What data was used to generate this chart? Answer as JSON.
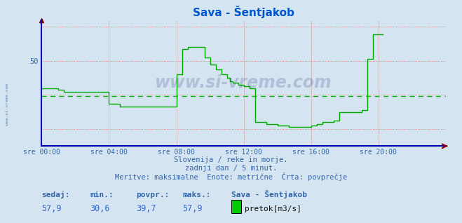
{
  "title": "Sava - Šentjakob",
  "bg_color": "#d4e4f0",
  "plot_bg_color": "#d4e4f0",
  "line_color": "#00aa00",
  "avg_line_color": "#00bb00",
  "avg_value": 39.7,
  "ymin": 25.0,
  "ymax": 62.0,
  "ytick_val": 50,
  "xlabel_color": "#3366aa",
  "axis_color": "#0000bb",
  "grid_color_h": "#dd6666",
  "grid_color_v": "#dd6666",
  "title_color": "#0055cc",
  "watermark": "www.si-vreme.com",
  "subtitle1": "Slovenija / reke in morje.",
  "subtitle2": "zadnji dan / 5 minut.",
  "subtitle3": "Meritve: maksimalne  Enote: metrične  Črta: povprečje",
  "legend_label": "pretok[m3/s]",
  "station": "Sava - Šentjakob",
  "sedaj_label": "sedaj:",
  "min_label": "min.:",
  "povpr_label": "povpr.:",
  "maks_label": "maks.:",
  "sedaj_val": "57,9",
  "min_val": "30,6",
  "povpr_val": "39,7",
  "maks_val": "57,9",
  "time_labels": [
    "sre 00:00",
    "sre 04:00",
    "sre 08:00",
    "sre 12:00",
    "sre 16:00",
    "sre 20:00"
  ],
  "time_positions": [
    0,
    48,
    96,
    144,
    192,
    240
  ],
  "total_points": 288,
  "flow_data": [
    42.0,
    42.0,
    42.0,
    42.0,
    42.0,
    42.0,
    42.0,
    42.0,
    42.0,
    42.0,
    42.0,
    42.0,
    41.5,
    41.5,
    41.5,
    41.5,
    41.0,
    41.0,
    41.0,
    41.0,
    41.0,
    41.0,
    41.0,
    41.0,
    41.0,
    41.0,
    41.0,
    41.0,
    41.0,
    41.0,
    41.0,
    41.0,
    41.0,
    41.0,
    41.0,
    41.0,
    41.0,
    41.0,
    41.0,
    41.0,
    41.0,
    41.0,
    41.0,
    41.0,
    41.0,
    41.0,
    41.0,
    41.0,
    37.5,
    37.5,
    37.5,
    37.5,
    37.5,
    37.5,
    37.5,
    37.5,
    36.5,
    36.5,
    36.5,
    36.5,
    36.5,
    36.5,
    36.5,
    36.5,
    36.5,
    36.5,
    36.5,
    36.5,
    36.5,
    36.5,
    36.5,
    36.5,
    36.5,
    36.5,
    36.5,
    36.5,
    36.5,
    36.5,
    36.5,
    36.5,
    36.5,
    36.5,
    36.5,
    36.5,
    36.5,
    36.5,
    36.5,
    36.5,
    36.5,
    36.5,
    36.5,
    36.5,
    36.5,
    36.5,
    36.5,
    36.5,
    46.0,
    46.0,
    46.0,
    46.0,
    53.5,
    53.5,
    53.5,
    53.5,
    54.0,
    54.0,
    54.0,
    54.0,
    54.0,
    54.0,
    54.0,
    54.0,
    54.0,
    54.0,
    54.0,
    54.0,
    51.0,
    51.0,
    51.0,
    51.0,
    49.0,
    49.0,
    49.0,
    49.0,
    47.5,
    47.5,
    47.5,
    47.5,
    46.0,
    46.0,
    46.0,
    46.0,
    45.0,
    45.0,
    44.0,
    44.0,
    43.5,
    43.5,
    43.5,
    43.5,
    43.0,
    43.0,
    43.0,
    43.0,
    42.5,
    42.5,
    42.5,
    42.5,
    42.0,
    42.0,
    42.0,
    42.0,
    32.0,
    32.0,
    32.0,
    32.0,
    32.0,
    32.0,
    32.0,
    32.0,
    31.5,
    31.5,
    31.5,
    31.5,
    31.5,
    31.5,
    31.5,
    31.5,
    31.0,
    31.0,
    31.0,
    31.0,
    31.0,
    31.0,
    31.0,
    31.0,
    30.6,
    30.6,
    30.6,
    30.6,
    30.6,
    30.6,
    30.6,
    30.6,
    30.6,
    30.6,
    30.6,
    30.6,
    30.6,
    30.6,
    30.6,
    30.6,
    31.0,
    31.0,
    31.0,
    31.0,
    31.5,
    31.5,
    31.5,
    31.5,
    32.0,
    32.0,
    32.0,
    32.0,
    32.0,
    32.0,
    32.0,
    32.0,
    32.5,
    32.5,
    32.5,
    32.5,
    35.0,
    35.0,
    35.0,
    35.0,
    35.0,
    35.0,
    35.0,
    35.0,
    35.0,
    35.0,
    35.0,
    35.0,
    35.0,
    35.0,
    35.0,
    35.0,
    35.5,
    35.5,
    35.5,
    35.5,
    50.5,
    50.5,
    50.5,
    50.5,
    57.9,
    57.9,
    57.9,
    57.9,
    57.9,
    57.9,
    57.9,
    57.9
  ]
}
